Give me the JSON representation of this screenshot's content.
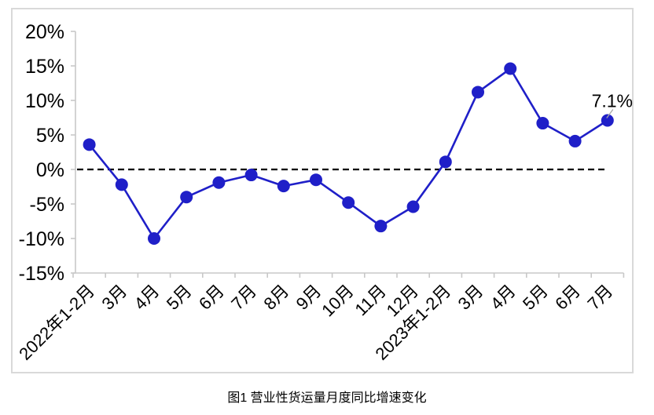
{
  "caption": "图1 营业性货运量月度同比增速变化",
  "chart_data": {
    "type": "line",
    "title": "图1 营业性货运量月度同比增速变化",
    "categories": [
      "2022年1-2月",
      "3月",
      "4月",
      "5月",
      "6月",
      "7月",
      "8月",
      "9月",
      "10月",
      "11月",
      "12月",
      "2023年1-2月",
      "3月",
      "4月",
      "5月",
      "6月",
      "7月"
    ],
    "series": [
      {
        "name": "营业性货运量月度同比增速",
        "values": [
          3.6,
          -2.2,
          -10.0,
          -4.0,
          -1.9,
          -0.8,
          -2.4,
          -1.5,
          -4.8,
          -8.2,
          -5.4,
          1.1,
          11.2,
          14.6,
          6.7,
          4.1,
          7.1
        ]
      }
    ],
    "unit": "%",
    "y_axis": {
      "ticks": [
        "20%",
        "15%",
        "10%",
        "5%",
        "0%",
        "-5%",
        "-10%",
        "-15%"
      ],
      "tick_values": [
        20,
        15,
        10,
        5,
        0,
        -5,
        -10,
        -15
      ],
      "ylim": [
        -15,
        20
      ]
    },
    "x_axis": {
      "label_rotation_deg": -45
    },
    "zero_line": {
      "style": "dashed",
      "value": 0,
      "color": "#000000"
    },
    "annotations": [
      {
        "text": "7.1%",
        "point_index": 16
      }
    ],
    "legend": "none",
    "grid": "off",
    "colors": {
      "line": "#1f1fc8",
      "marker": "#1f1fc8",
      "axis": "#c8c8c8",
      "frame_border": "#d9d9d9",
      "text": "#000000",
      "leader": "#a6a6a6"
    }
  }
}
